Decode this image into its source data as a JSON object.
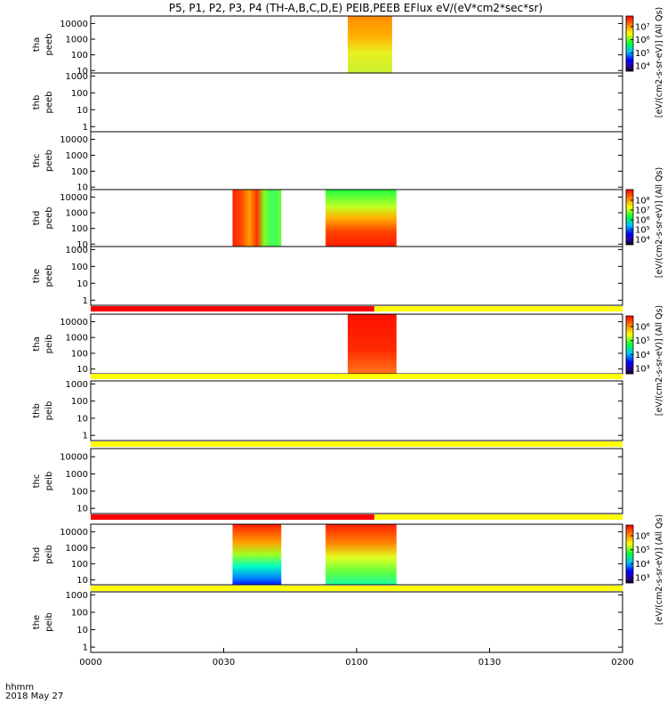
{
  "title": "P5, P1, P2, P3, P4 (TH-A,B,C,D,E) PEIB,PEEB EFlux eV/(eV*cm2*sec*sr)",
  "time_axis": {
    "label_line1": "hhmm",
    "label_line2": "2018 May 27",
    "ticks": [
      "0000",
      "0030",
      "0100",
      "0130",
      "0200"
    ]
  },
  "colorbars": [
    {
      "label": "[eV/(cm2-s-sr-eV)] (All Qs)",
      "ticks": [
        "10⁷",
        "10⁶",
        "10⁵",
        "10⁴"
      ]
    },
    {
      "label": "[eV/(cm2-s-sr-eV)] (All Qs)",
      "ticks": [
        "10⁸",
        "10⁷",
        "10⁶",
        "10⁵",
        "10⁴"
      ]
    },
    {
      "label": "[eV/(cm2-s-sr-eV)] (All Qs)",
      "ticks": [
        "10⁶",
        "10⁵",
        "10⁴",
        "10³"
      ]
    },
    {
      "label": "[eV/(cm2-s-sr-eV)] (All Qs)",
      "ticks": [
        "10⁶",
        "10⁵",
        "10⁴",
        "10³"
      ]
    }
  ],
  "colors": {
    "red_flag": "#ff0000",
    "yellow_flag": "#ffff00",
    "axis": "#000000"
  },
  "chart_data": {
    "type": "heatmap",
    "x_unit": "hhmm",
    "x_range": [
      "0000",
      "0200"
    ],
    "panels": [
      {
        "probe": "tha",
        "species": "peeb",
        "y_ticks": [
          "10000",
          "1000",
          "100",
          "10"
        ],
        "y_range": [
          7,
          30000
        ],
        "y_scale": "log",
        "blocks": [
          {
            "t_start": "0058",
            "t_end": "0108",
            "style": "orange-top-yellow-bottom"
          }
        ]
      },
      {
        "probe": "thb",
        "species": "peeb",
        "y_ticks": [
          "1000",
          "100",
          "10",
          "1"
        ],
        "y_range": [
          0.5,
          1500
        ],
        "y_scale": "log",
        "blocks": []
      },
      {
        "probe": "thc",
        "species": "peeb",
        "y_ticks": [
          "10000",
          "1000",
          "100",
          "10"
        ],
        "y_range": [
          7,
          30000
        ],
        "y_scale": "log",
        "blocks": []
      },
      {
        "probe": "thd",
        "species": "peeb",
        "y_ticks": [
          "10000",
          "1000",
          "100",
          "10"
        ],
        "y_range": [
          7,
          30000
        ],
        "y_scale": "log",
        "blocks": [
          {
            "t_start": "0032",
            "t_end": "0043",
            "style": "red-green-patchy"
          },
          {
            "t_start": "0053",
            "t_end": "0109",
            "style": "green-top-red-bottom"
          }
        ]
      },
      {
        "probe": "the",
        "species": "peeb",
        "y_ticks": [
          "1000",
          "100",
          "10",
          "1"
        ],
        "y_range": [
          0.5,
          1500
        ],
        "y_scale": "log",
        "blocks": []
      },
      {
        "probe": "tha",
        "species": "peib",
        "y_ticks": [
          "10000",
          "1000",
          "100",
          "10"
        ],
        "y_range": [
          5,
          30000
        ],
        "y_scale": "log",
        "blocks": [
          {
            "t_start": "0058",
            "t_end": "0109",
            "style": "red-fill"
          }
        ]
      },
      {
        "probe": "thb",
        "species": "peib",
        "y_ticks": [
          "1000",
          "100",
          "10",
          "1"
        ],
        "y_range": [
          0.5,
          1500
        ],
        "y_scale": "log",
        "blocks": []
      },
      {
        "probe": "thc",
        "species": "peib",
        "y_ticks": [
          "10000",
          "1000",
          "100",
          "10"
        ],
        "y_range": [
          5,
          30000
        ],
        "y_scale": "log",
        "blocks": []
      },
      {
        "probe": "thd",
        "species": "peib",
        "y_ticks": [
          "10000",
          "1000",
          "100",
          "10"
        ],
        "y_range": [
          5,
          30000
        ],
        "y_scale": "log",
        "blocks": [
          {
            "t_start": "0032",
            "t_end": "0043",
            "style": "red-top-blue-bottom"
          },
          {
            "t_start": "0053",
            "t_end": "0109",
            "style": "red-top-green-bottom"
          }
        ]
      },
      {
        "probe": "the",
        "species": "peib",
        "y_ticks": [
          "1000",
          "100",
          "10",
          "1"
        ],
        "y_range": [
          0.5,
          1500
        ],
        "y_scale": "log",
        "blocks": []
      }
    ],
    "flag_bars": [
      {
        "after_panel": 4,
        "segments": [
          {
            "t_start": "0000",
            "t_end": "0104",
            "color": "red"
          },
          {
            "t_start": "0104",
            "t_end": "0200",
            "color": "yellow"
          }
        ]
      },
      {
        "after_panel": 5,
        "segments": [
          {
            "t_start": "0000",
            "t_end": "0200",
            "color": "yellow"
          }
        ]
      },
      {
        "after_panel": 6,
        "segments": [
          {
            "t_start": "0000",
            "t_end": "0200",
            "color": "yellow"
          }
        ]
      },
      {
        "after_panel": 7,
        "segments": [
          {
            "t_start": "0000",
            "t_end": "0104",
            "color": "red"
          },
          {
            "t_start": "0104",
            "t_end": "0200",
            "color": "yellow"
          }
        ]
      },
      {
        "after_panel": 8,
        "segments": [
          {
            "t_start": "0000",
            "t_end": "0200",
            "color": "yellow"
          }
        ]
      }
    ]
  }
}
